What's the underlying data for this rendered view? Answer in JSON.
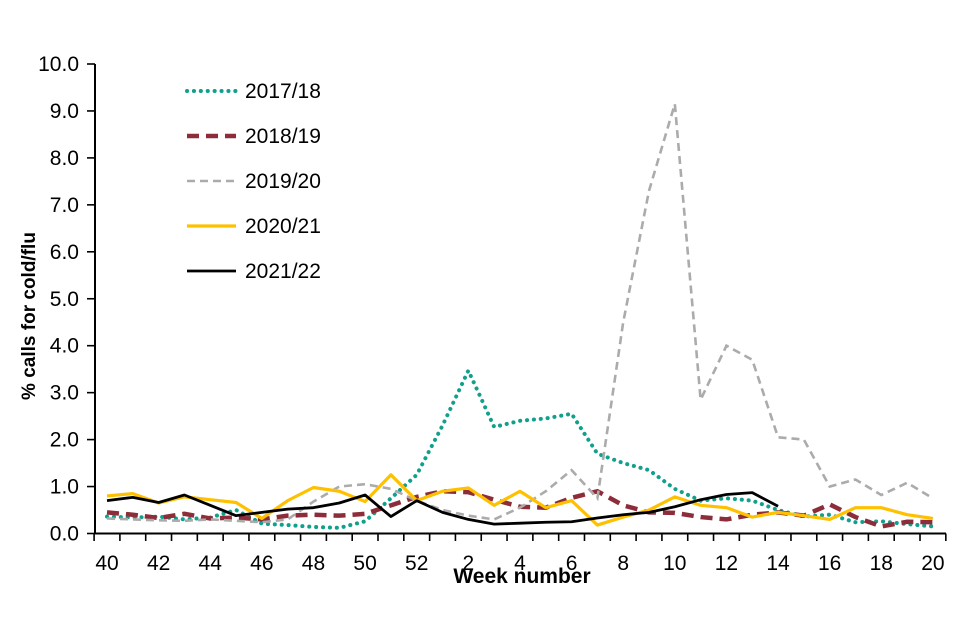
{
  "chart_data": {
    "type": "line",
    "title": "",
    "xlabel": "Week number",
    "ylabel": "% calls  for cold/flu",
    "ylim": [
      0.0,
      10.0
    ],
    "grid": "off",
    "legend_position": "upper-left-inside",
    "background_color": "#ffffff",
    "axis_color": "#000000",
    "y_tick_labels": [
      "0.0",
      "1.0",
      "2.0",
      "3.0",
      "4.0",
      "5.0",
      "6.0",
      "7.0",
      "8.0",
      "9.0",
      "10.0"
    ],
    "x_categories": [
      "40",
      "41",
      "42",
      "43",
      "44",
      "45",
      "46",
      "47",
      "48",
      "49",
      "50",
      "51",
      "52",
      "1",
      "2",
      "3",
      "4",
      "5",
      "6",
      "7",
      "8",
      "9",
      "10",
      "11",
      "12",
      "13",
      "14",
      "15",
      "16",
      "17",
      "18",
      "19",
      "20"
    ],
    "x_label_every": 2,
    "series": [
      {
        "name": "2017/18",
        "color": "#10A08C",
        "style": "dotted",
        "values": [
          0.36,
          0.34,
          0.36,
          0.3,
          0.34,
          0.5,
          0.21,
          0.18,
          0.14,
          0.12,
          0.26,
          0.75,
          1.25,
          2.3,
          3.47,
          2.27,
          2.4,
          2.45,
          2.55,
          1.7,
          1.5,
          1.35,
          0.95,
          0.7,
          0.75,
          0.7,
          0.5,
          0.36,
          0.4,
          0.24,
          0.26,
          0.2,
          0.15
        ]
      },
      {
        "name": "2018/19",
        "color": "#8C2D39",
        "style": "dash-thick",
        "values": [
          0.45,
          0.4,
          0.33,
          0.42,
          0.32,
          0.34,
          0.3,
          0.38,
          0.4,
          0.38,
          0.42,
          0.6,
          0.78,
          0.9,
          0.88,
          0.72,
          0.57,
          0.55,
          0.76,
          0.9,
          0.6,
          0.45,
          0.44,
          0.35,
          0.3,
          0.4,
          0.45,
          0.38,
          0.62,
          0.35,
          0.15,
          0.25,
          0.24
        ]
      },
      {
        "name": "2019/20",
        "color": "#ABABAB",
        "style": "dash",
        "values": [
          0.32,
          0.3,
          0.28,
          0.27,
          0.3,
          0.27,
          0.24,
          0.3,
          0.68,
          1.0,
          1.05,
          0.95,
          0.7,
          0.5,
          0.38,
          0.3,
          0.55,
          0.9,
          1.35,
          0.75,
          4.5,
          7.3,
          9.15,
          2.85,
          4.0,
          3.7,
          2.05,
          2.0,
          1.0,
          1.15,
          0.82,
          1.08,
          0.75
        ]
      },
      {
        "name": "2020/21",
        "color": "#FFC000",
        "style": "solid",
        "values": [
          0.8,
          0.85,
          0.65,
          0.78,
          0.72,
          0.66,
          0.32,
          0.7,
          0.98,
          0.9,
          0.68,
          1.25,
          0.7,
          0.9,
          0.97,
          0.6,
          0.9,
          0.55,
          0.7,
          0.18,
          0.35,
          0.5,
          0.78,
          0.6,
          0.55,
          0.35,
          0.45,
          0.38,
          0.3,
          0.55,
          0.55,
          0.4,
          0.32
        ]
      },
      {
        "name": "2021/22",
        "color": "#000000",
        "style": "solid",
        "values": [
          0.7,
          0.77,
          0.66,
          0.82,
          0.6,
          0.38,
          0.45,
          0.52,
          0.55,
          0.65,
          0.82,
          0.36,
          0.7,
          0.45,
          0.3,
          0.2,
          0.22,
          0.24,
          0.25,
          0.33,
          0.4,
          0.45,
          0.57,
          0.72,
          0.83,
          0.87,
          0.58
        ]
      }
    ]
  }
}
